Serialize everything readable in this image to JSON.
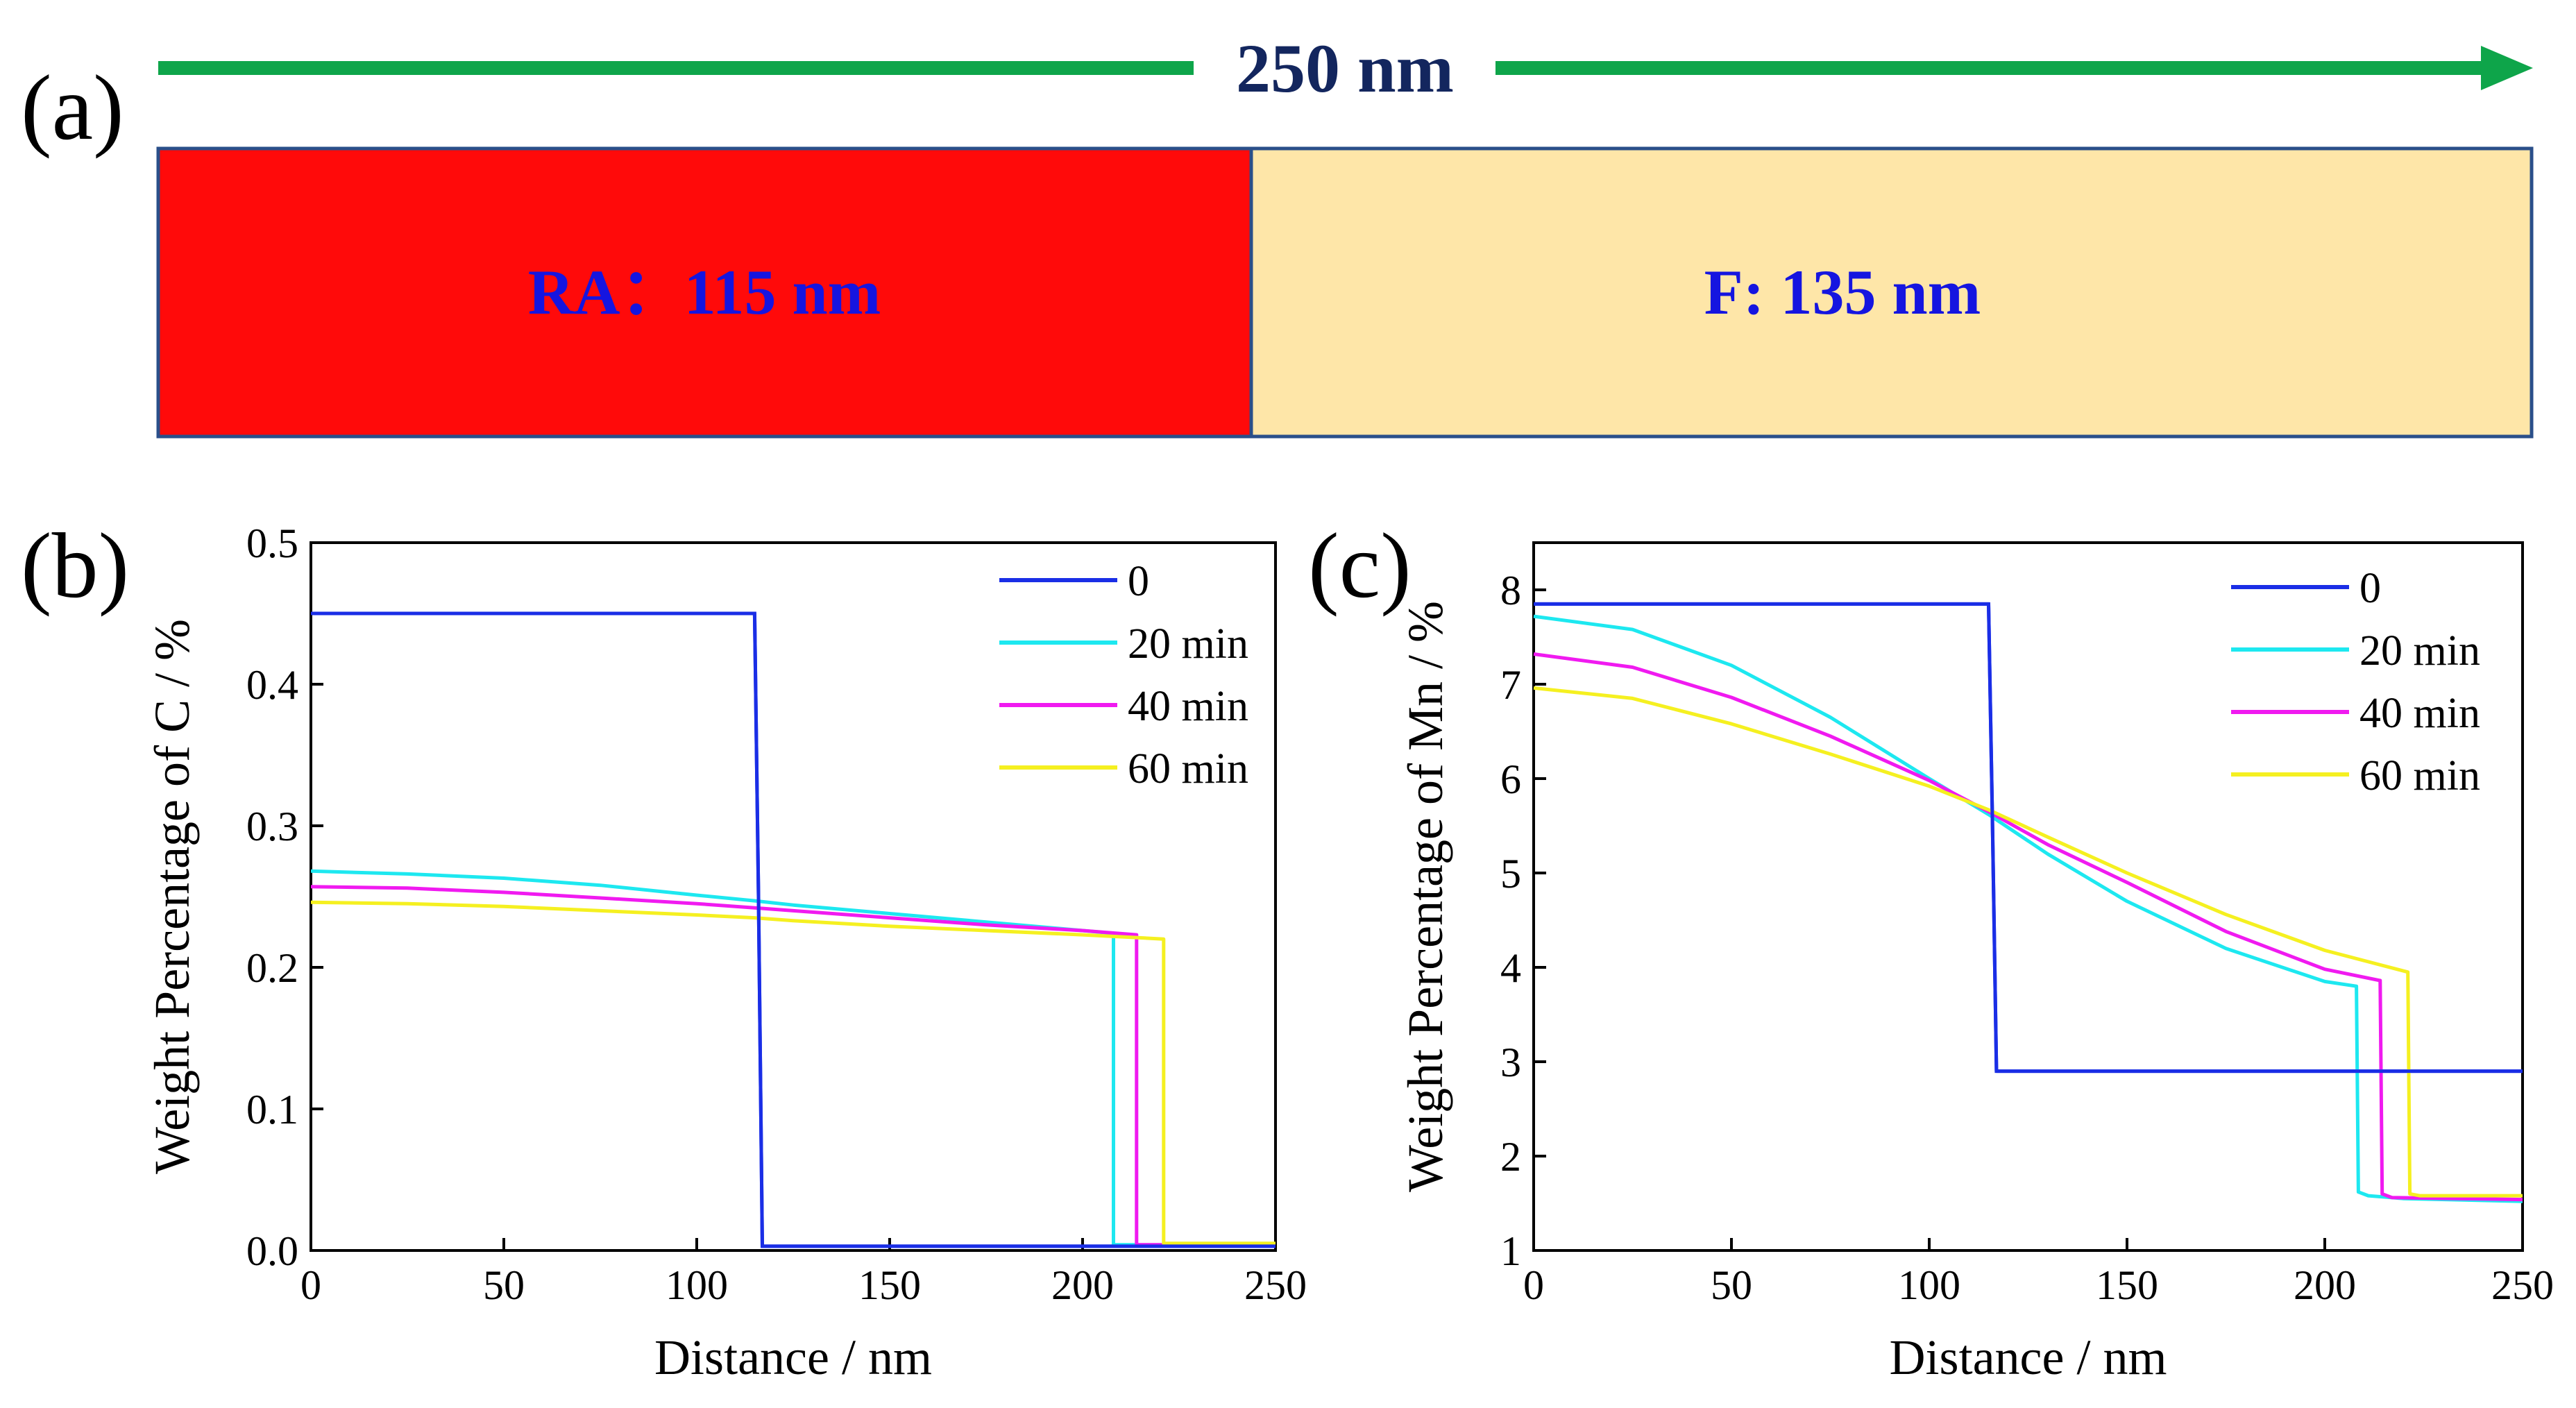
{
  "panel_a": {
    "label": "(a)",
    "scale_text": "250 nm",
    "ra_label": "RA：115 nm",
    "f_label": "F: 135 nm",
    "colors": {
      "arrow": "#0ea54a",
      "ra_fill": "#ff0a0a",
      "f_fill": "#fee6a8",
      "border": "#2a4f8a"
    }
  },
  "chart_data": [
    {
      "panel_label": "(b)",
      "type": "line",
      "xlabel": "Distance / nm",
      "ylabel": "Weight Percentage of C / %",
      "xlim": [
        0,
        250
      ],
      "ylim": [
        0,
        0.5
      ],
      "xticks": [
        0,
        50,
        100,
        150,
        200,
        250
      ],
      "yticks": [
        0.0,
        0.1,
        0.2,
        0.3,
        0.4,
        0.5
      ],
      "ytick_labels": [
        "0.0",
        "0.1",
        "0.2",
        "0.3",
        "0.4",
        "0.5"
      ],
      "legend_position": "top-right",
      "grid": false,
      "series": [
        {
          "name": "0",
          "color": "#1a2ee6",
          "x": [
            0,
            115,
            116,
            117,
            250
          ],
          "y": [
            0.45,
            0.45,
            0.25,
            0.003,
            0.003
          ]
        },
        {
          "name": "20 min",
          "color": "#1de8f0",
          "x": [
            0,
            25,
            50,
            75,
            100,
            115,
            125,
            150,
            175,
            200,
            208,
            208,
            211,
            250
          ],
          "y": [
            0.268,
            0.266,
            0.263,
            0.258,
            0.251,
            0.247,
            0.244,
            0.238,
            0.232,
            0.226,
            0.224,
            0.004,
            0.004,
            0.004
          ]
        },
        {
          "name": "40 min",
          "color": "#f01af0",
          "x": [
            0,
            25,
            50,
            75,
            100,
            115,
            125,
            150,
            175,
            200,
            214,
            214,
            217,
            250
          ],
          "y": [
            0.257,
            0.256,
            0.253,
            0.249,
            0.245,
            0.242,
            0.24,
            0.235,
            0.23,
            0.226,
            0.223,
            0.004,
            0.004,
            0.004
          ]
        },
        {
          "name": "60 min",
          "color": "#f5f020",
          "x": [
            0,
            25,
            50,
            75,
            100,
            115,
            125,
            150,
            175,
            200,
            221,
            221,
            224,
            250
          ],
          "y": [
            0.246,
            0.245,
            0.243,
            0.24,
            0.237,
            0.235,
            0.233,
            0.229,
            0.226,
            0.223,
            0.22,
            0.005,
            0.005,
            0.005
          ]
        }
      ]
    },
    {
      "panel_label": "(c)",
      "type": "line",
      "xlabel": "Distance / nm",
      "ylabel": "Weight Percentage of Mn / %",
      "xlim": [
        0,
        250
      ],
      "ylim": [
        1,
        8.5
      ],
      "xticks": [
        0,
        50,
        100,
        150,
        200,
        250
      ],
      "yticks": [
        1,
        2,
        3,
        4,
        5,
        6,
        7,
        8
      ],
      "ytick_labels": [
        "1",
        "2",
        "3",
        "4",
        "5",
        "6",
        "7",
        "8"
      ],
      "legend_position": "top-right",
      "grid": false,
      "series": [
        {
          "name": "0",
          "color": "#1a2ee6",
          "x": [
            0,
            115,
            116,
            117,
            250
          ],
          "y": [
            7.85,
            7.85,
            5.5,
            2.9,
            2.9
          ]
        },
        {
          "name": "20 min",
          "color": "#1de8f0",
          "x": [
            0,
            25,
            50,
            75,
            100,
            115,
            130,
            150,
            175,
            200,
            208,
            208.5,
            211,
            220,
            250
          ],
          "y": [
            7.72,
            7.58,
            7.2,
            6.65,
            6.0,
            5.62,
            5.2,
            4.7,
            4.2,
            3.85,
            3.8,
            1.62,
            1.58,
            1.55,
            1.52
          ]
        },
        {
          "name": "40 min",
          "color": "#f01af0",
          "x": [
            0,
            25,
            50,
            75,
            100,
            115,
            130,
            150,
            175,
            200,
            214,
            214.5,
            217,
            250
          ],
          "y": [
            7.32,
            7.18,
            6.86,
            6.45,
            5.98,
            5.65,
            5.3,
            4.9,
            4.38,
            3.98,
            3.86,
            1.6,
            1.56,
            1.54
          ]
        },
        {
          "name": "60 min",
          "color": "#f5f020",
          "x": [
            0,
            25,
            50,
            75,
            100,
            115,
            130,
            150,
            175,
            200,
            221,
            221.5,
            224,
            250
          ],
          "y": [
            6.96,
            6.85,
            6.58,
            6.26,
            5.92,
            5.67,
            5.38,
            5.0,
            4.56,
            4.18,
            3.95,
            1.6,
            1.58,
            1.58
          ]
        }
      ]
    }
  ]
}
